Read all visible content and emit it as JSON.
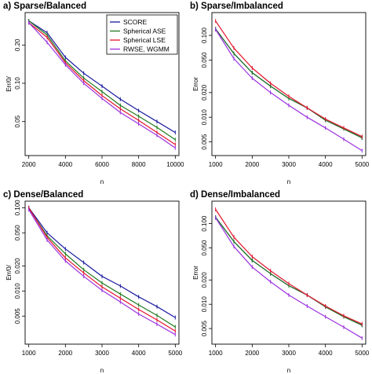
{
  "colors": {
    "score": "#1a1aa0",
    "spherical_ase": "#1f7a1f",
    "spherical_lse": "#e3132c",
    "rwse_wgmm": "#9b30e0"
  },
  "legend": {
    "placement": "top-right of panel a",
    "entries": [
      "SCORE",
      "Spherical ASE",
      "Spherical LSE",
      "RWSE, WGMM"
    ]
  },
  "chart_data": [
    {
      "type": "line",
      "title": "a) Sparse/Balanced",
      "xlabel": "n",
      "ylabel": "Err/0/",
      "y_scale": "log",
      "xlim": [
        1800,
        10200
      ],
      "ylim": [
        0.027,
        0.36
      ],
      "xticks": [
        2000,
        4000,
        6000,
        8000,
        10000
      ],
      "xtick_labels": [
        "2000",
        "4000",
        "6000",
        "8000",
        "10000"
      ],
      "yticks": [
        0.05,
        0.1,
        0.2
      ],
      "ytick_labels": [
        "0.05",
        "0.10",
        "0.20"
      ],
      "grid": false,
      "x": [
        2000,
        3000,
        4000,
        5000,
        6000,
        7000,
        8000,
        9000,
        10000
      ],
      "series": [
        {
          "name": "SCORE",
          "color_key": "score",
          "values": [
            0.31,
            0.25,
            0.16,
            0.12,
            0.095,
            0.075,
            0.061,
            0.05,
            0.041
          ]
        },
        {
          "name": "Spherical ASE",
          "color_key": "spherical_ase",
          "values": [
            0.31,
            0.24,
            0.15,
            0.11,
            0.086,
            0.067,
            0.055,
            0.045,
            0.036
          ]
        },
        {
          "name": "Spherical LSE",
          "color_key": "spherical_lse",
          "values": [
            0.3,
            0.23,
            0.145,
            0.105,
            0.08,
            0.063,
            0.051,
            0.041,
            0.033
          ]
        },
        {
          "name": "RWSE, WGMM",
          "color_key": "rwse_wgmm",
          "values": [
            0.3,
            0.21,
            0.14,
            0.1,
            0.076,
            0.059,
            0.048,
            0.039,
            0.031
          ]
        }
      ]
    },
    {
      "type": "line",
      "title": "b) Sparse/Imbalanced",
      "xlabel": "n",
      "ylabel": "Error",
      "y_scale": "log",
      "xlim": [
        900,
        5100
      ],
      "ylim": [
        0.0034,
        0.19
      ],
      "xticks": [
        1000,
        2000,
        3000,
        4000,
        5000
      ],
      "xtick_labels": [
        "1000",
        "2000",
        "3000",
        "4000",
        "5000"
      ],
      "yticks": [
        0.005,
        0.01,
        0.02,
        0.05,
        0.1
      ],
      "ytick_labels": [
        "0.005",
        "0.010",
        "0.020",
        "0.050",
        "0.100"
      ],
      "grid": false,
      "x": [
        1000,
        1500,
        2000,
        2500,
        3000,
        3500,
        4000,
        4500,
        5000
      ],
      "series": [
        {
          "name": "SCORE",
          "color_key": "score",
          "values": [
            0.12,
            0.06,
            0.035,
            0.024,
            0.017,
            0.013,
            0.0092,
            0.0072,
            0.0056
          ]
        },
        {
          "name": "Spherical ASE",
          "color_key": "spherical_ase",
          "values": [
            0.12,
            0.06,
            0.035,
            0.024,
            0.017,
            0.013,
            0.0092,
            0.0072,
            0.0056
          ]
        },
        {
          "name": "Spherical LSE",
          "color_key": "spherical_lse",
          "values": [
            0.15,
            0.07,
            0.04,
            0.026,
            0.018,
            0.013,
            0.0095,
            0.0074,
            0.0058
          ]
        },
        {
          "name": "RWSE, WGMM",
          "color_key": "rwse_wgmm",
          "values": [
            0.118,
            0.052,
            0.03,
            0.02,
            0.014,
            0.01,
            0.0074,
            0.0054,
            0.0039
          ]
        }
      ]
    },
    {
      "type": "line",
      "title": "c) Dense/Balanced",
      "xlabel": "n",
      "ylabel": "Err/0/",
      "y_scale": "log",
      "xlim": [
        900,
        5100
      ],
      "ylim": [
        0.0023,
        0.12
      ],
      "xticks": [
        1000,
        2000,
        3000,
        4000,
        5000
      ],
      "xtick_labels": [
        "1000",
        "2000",
        "3000",
        "4000",
        "5000"
      ],
      "yticks": [
        0.005,
        0.01,
        0.02,
        0.05,
        0.1
      ],
      "ytick_labels": [
        "0.005",
        "0.010",
        "0.020",
        "0.050",
        "0.100"
      ],
      "grid": false,
      "x": [
        1000,
        1500,
        2000,
        2500,
        3000,
        3500,
        4000,
        4500,
        5000
      ],
      "series": [
        {
          "name": "SCORE",
          "color_key": "score",
          "values": [
            0.1,
            0.05,
            0.032,
            0.022,
            0.015,
            0.0115,
            0.0085,
            0.0065,
            0.0048
          ]
        },
        {
          "name": "Spherical ASE",
          "color_key": "spherical_ase",
          "values": [
            0.098,
            0.046,
            0.028,
            0.018,
            0.0125,
            0.0092,
            0.0068,
            0.0051,
            0.0037
          ]
        },
        {
          "name": "Spherical LSE",
          "color_key": "spherical_lse",
          "values": [
            0.1,
            0.044,
            0.025,
            0.0165,
            0.0112,
            0.0082,
            0.006,
            0.0045,
            0.0033
          ]
        },
        {
          "name": "RWSE, WGMM",
          "color_key": "rwse_wgmm",
          "values": [
            0.095,
            0.041,
            0.023,
            0.015,
            0.0102,
            0.0074,
            0.0053,
            0.004,
            0.003
          ]
        }
      ]
    },
    {
      "type": "line",
      "title": "d) Dense/Imbalanced",
      "xlabel": "n",
      "ylabel": "Error",
      "y_scale": "log",
      "xlim": [
        900,
        5100
      ],
      "ylim": [
        0.0032,
        0.19
      ],
      "xticks": [
        1000,
        2000,
        3000,
        4000,
        5000
      ],
      "xtick_labels": [
        "1000",
        "2000",
        "3000",
        "4000",
        "5000"
      ],
      "yticks": [
        0.005,
        0.01,
        0.02,
        0.05,
        0.1
      ],
      "ytick_labels": [
        "0.005",
        "0.010",
        "0.020",
        "0.050",
        "0.100"
      ],
      "grid": false,
      "x": [
        1000,
        1500,
        2000,
        2500,
        3000,
        3500,
        4000,
        4500,
        5000
      ],
      "series": [
        {
          "name": "SCORE",
          "color_key": "score",
          "values": [
            0.12,
            0.06,
            0.035,
            0.024,
            0.017,
            0.013,
            0.0093,
            0.007,
            0.0055
          ]
        },
        {
          "name": "Spherical ASE",
          "color_key": "spherical_ase",
          "values": [
            0.12,
            0.06,
            0.035,
            0.024,
            0.017,
            0.013,
            0.0093,
            0.007,
            0.0055
          ]
        },
        {
          "name": "Spherical LSE",
          "color_key": "spherical_lse",
          "values": [
            0.15,
            0.068,
            0.039,
            0.026,
            0.018,
            0.013,
            0.0095,
            0.0072,
            0.0057
          ]
        },
        {
          "name": "RWSE, WGMM",
          "color_key": "rwse_wgmm",
          "values": [
            0.118,
            0.052,
            0.029,
            0.019,
            0.013,
            0.0095,
            0.007,
            0.0052,
            0.0038
          ]
        }
      ]
    }
  ]
}
